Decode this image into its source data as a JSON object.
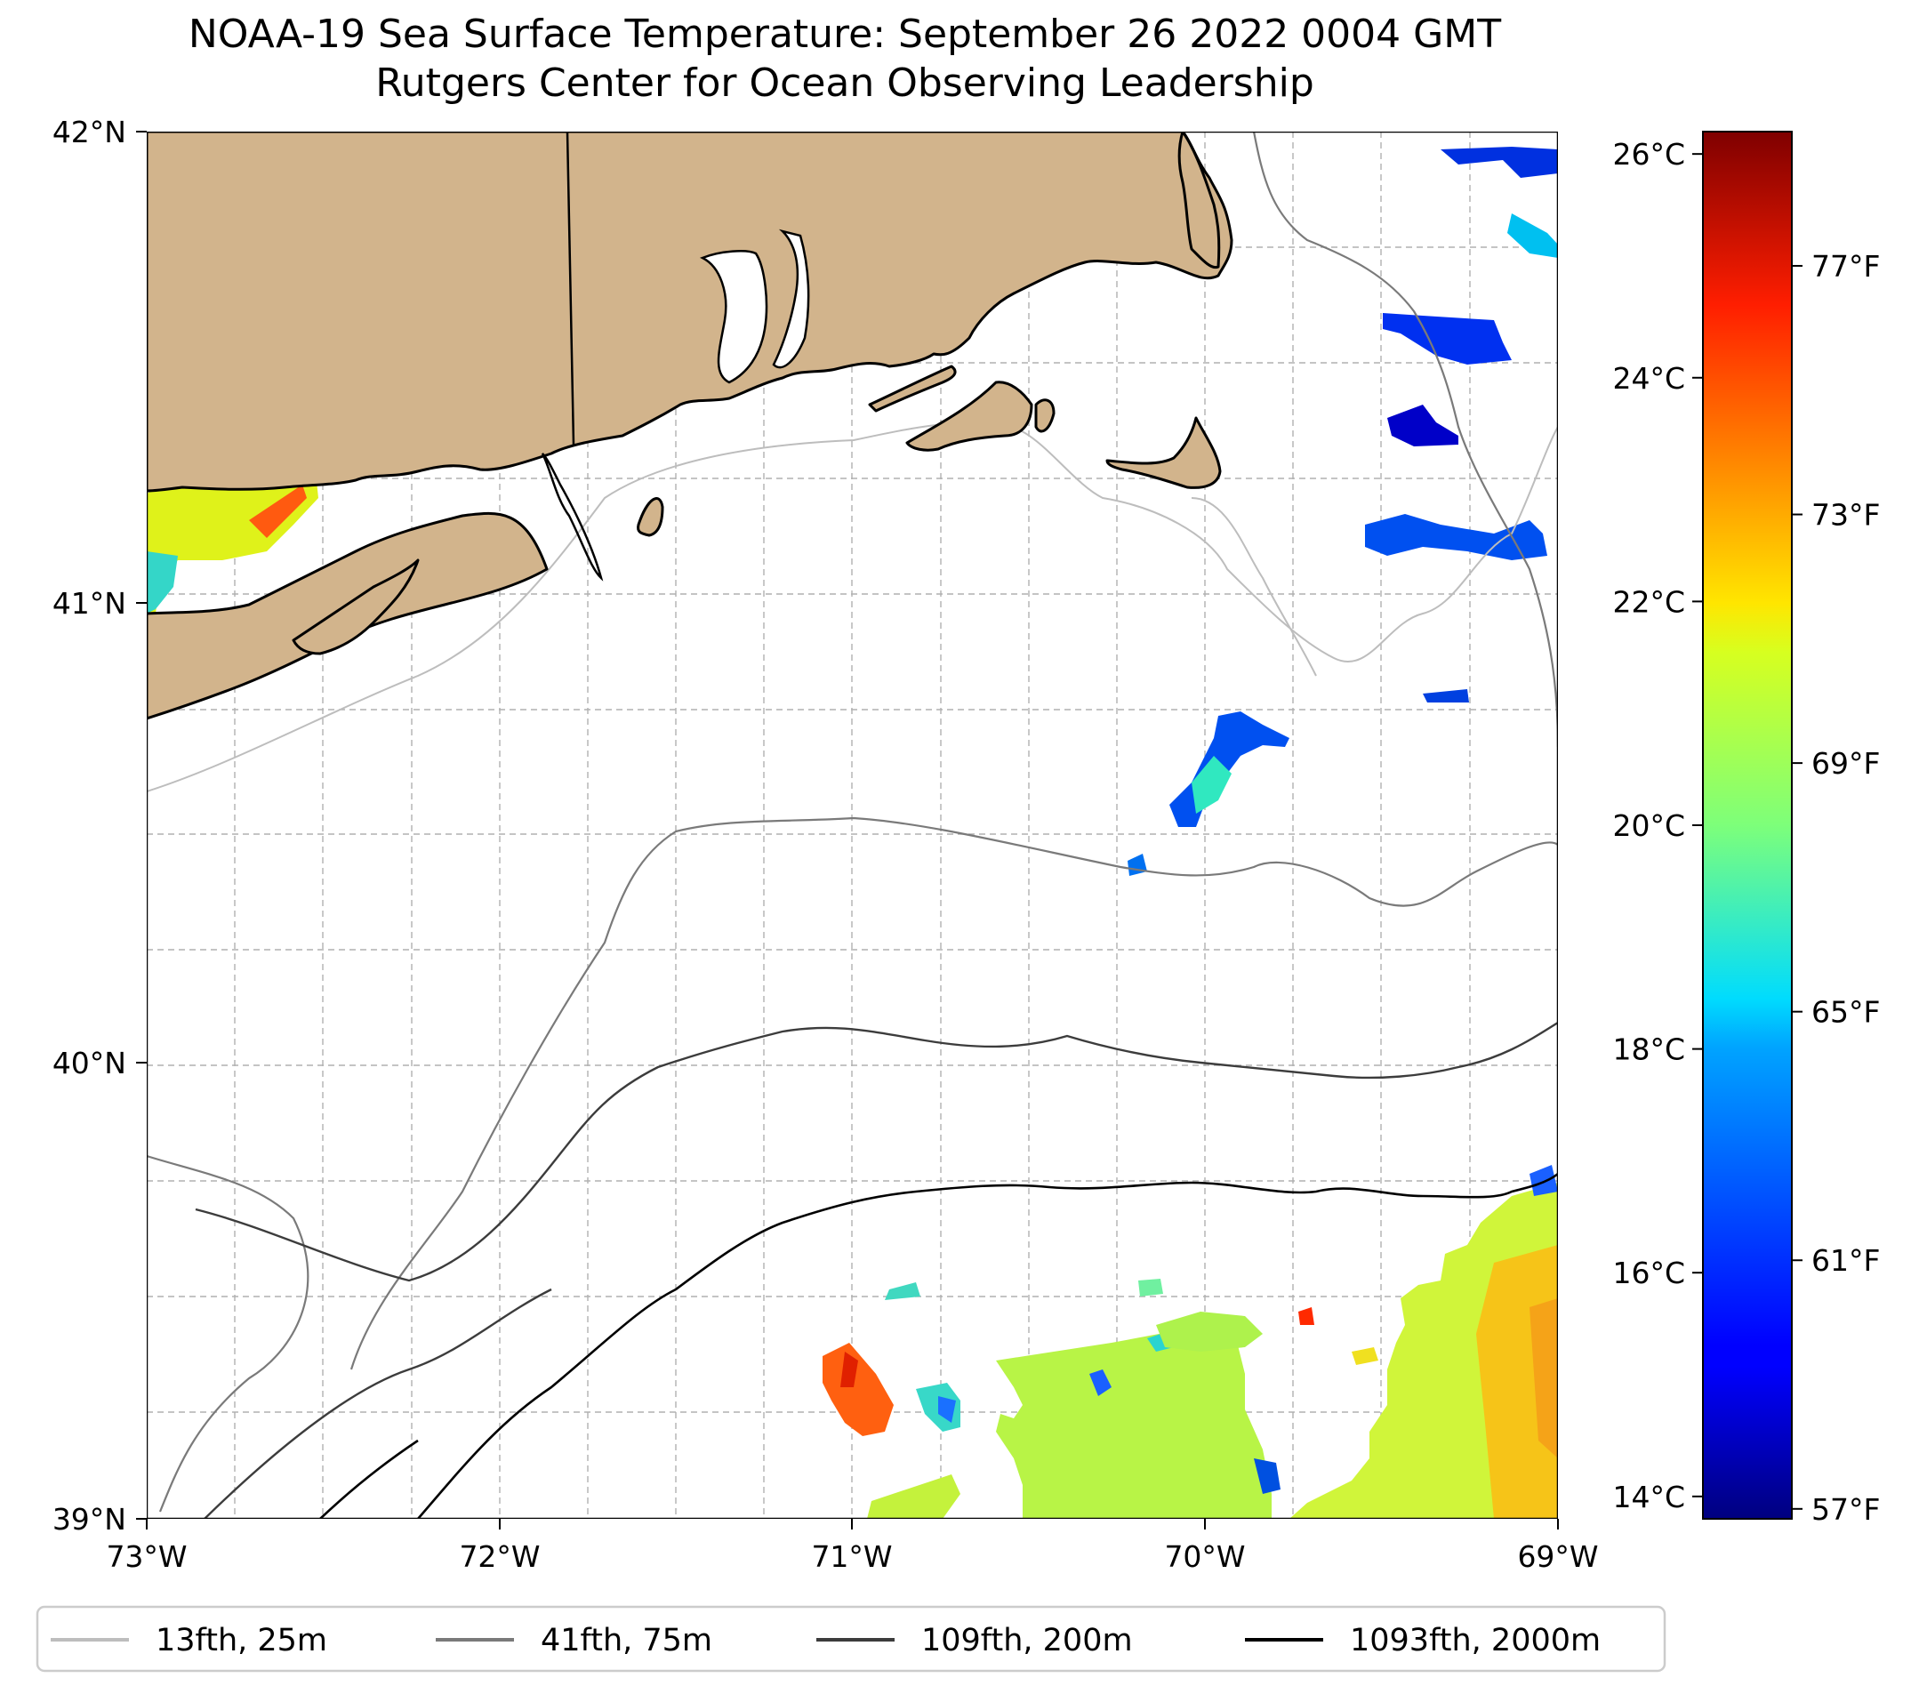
{
  "title": {
    "line1": "NOAA-19 Sea Surface Temperature: September 26 2022 0004 GMT",
    "line2": "Rutgers Center for Ocean Observing Leadership"
  },
  "map": {
    "lon_range": [
      -73,
      -69
    ],
    "lat_range": [
      39,
      42
    ],
    "x_ticks": [
      {
        "lon": -73,
        "label": "73°W"
      },
      {
        "lon": -72,
        "label": "72°W"
      },
      {
        "lon": -71,
        "label": "71°W"
      },
      {
        "lon": -70,
        "label": "70°W"
      },
      {
        "lon": -69,
        "label": "69°W"
      }
    ],
    "y_ticks": [
      {
        "lat": 42,
        "label": "42°N"
      },
      {
        "lat": 41,
        "label": "41°N"
      },
      {
        "lat": 40,
        "label": "40°N"
      },
      {
        "lat": 39,
        "label": "39°N"
      }
    ],
    "land_color": "#d2b48c"
  },
  "colorbar": {
    "cmap": "jet",
    "range_c": [
      13.8,
      26.2
    ],
    "celsius_ticks": [
      {
        "value": 14,
        "label": "14°C"
      },
      {
        "value": 16,
        "label": "16°C"
      },
      {
        "value": 18,
        "label": "18°C"
      },
      {
        "value": 20,
        "label": "20°C"
      },
      {
        "value": 22,
        "label": "22°C"
      },
      {
        "value": 24,
        "label": "24°C"
      },
      {
        "value": 26,
        "label": "26°C"
      }
    ],
    "fahrenheit_ticks": [
      {
        "value": 57,
        "label": "57°F"
      },
      {
        "value": 61,
        "label": "61°F"
      },
      {
        "value": 65,
        "label": "65°F"
      },
      {
        "value": 69,
        "label": "69°F"
      },
      {
        "value": 73,
        "label": "73°F"
      },
      {
        "value": 77,
        "label": "77°F"
      }
    ]
  },
  "legend": {
    "items": [
      {
        "label": "13fth, 25m",
        "color": "#bdbdbd"
      },
      {
        "label": "41fth, 75m",
        "color": "#7a7a7a"
      },
      {
        "label": "109fth, 200m",
        "color": "#3c3c3c"
      },
      {
        "label": "1093fth, 2000m",
        "color": "#000000"
      }
    ]
  }
}
